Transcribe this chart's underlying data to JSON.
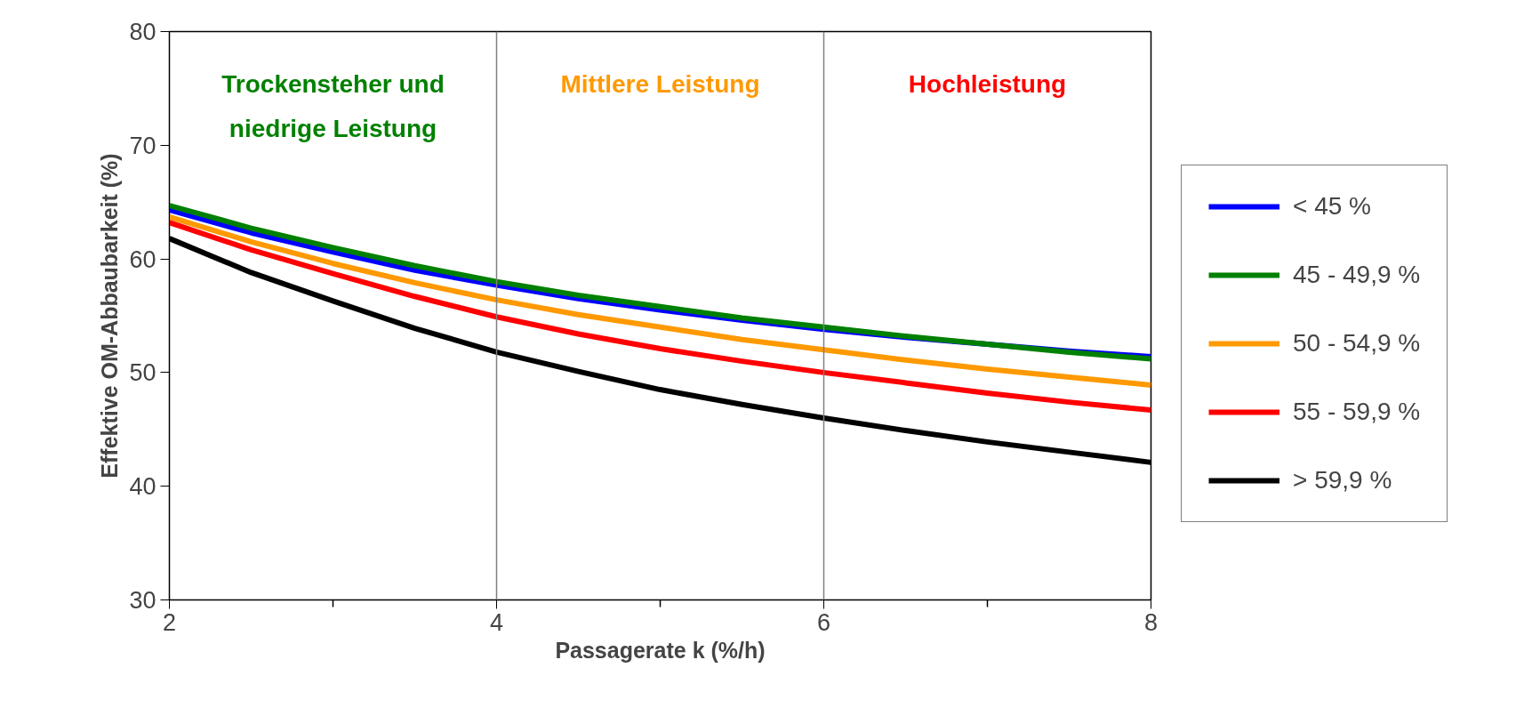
{
  "chart_data": {
    "type": "line",
    "xlabel": "Passagerate k (%/h)",
    "ylabel": "Effektive OM-Abbaubarkeit (%)",
    "x": [
      2,
      2.5,
      3,
      3.5,
      4,
      4.5,
      5,
      5.5,
      6,
      6.5,
      7,
      7.5,
      8
    ],
    "series": [
      {
        "name": "< 45 %",
        "color": "#0000ff",
        "values": [
          64.3,
          62.3,
          60.6,
          59.0,
          57.7,
          56.5,
          55.5,
          54.6,
          53.8,
          53.1,
          52.5,
          51.9,
          51.4
        ]
      },
      {
        "name": "45 - 49,9 %",
        "color": "#008000",
        "values": [
          64.7,
          62.7,
          61.0,
          59.4,
          58.0,
          56.8,
          55.8,
          54.8,
          54.0,
          53.2,
          52.5,
          51.8,
          51.2
        ]
      },
      {
        "name": "50 - 54,9 %",
        "color": "#ff9900",
        "values": [
          63.7,
          61.5,
          59.6,
          57.9,
          56.4,
          55.1,
          54.0,
          52.9,
          52.0,
          51.1,
          50.3,
          49.6,
          48.9
        ]
      },
      {
        "name": "55 - 59,9 %",
        "color": "#ff0000",
        "values": [
          63.2,
          60.8,
          58.7,
          56.7,
          54.9,
          53.4,
          52.1,
          51.0,
          50.0,
          49.1,
          48.2,
          47.4,
          46.7
        ]
      },
      {
        "name": "> 59,9 %",
        "color": "#000000",
        "values": [
          61.8,
          58.8,
          56.3,
          53.9,
          51.8,
          50.1,
          48.5,
          47.2,
          46.0,
          44.9,
          43.9,
          43.0,
          42.1
        ]
      }
    ],
    "xlim": [
      2,
      8
    ],
    "ylim": [
      30,
      80
    ],
    "xticks": [
      2,
      {
        "value": 3,
        "label": null
      },
      4,
      {
        "value": 5,
        "label": null
      },
      6,
      {
        "value": 7,
        "label": null
      },
      8
    ],
    "yticks": [
      30,
      40,
      50,
      60,
      70,
      80
    ],
    "ref_lines": [
      {
        "axis": "x",
        "value": 4,
        "color": "#808080"
      },
      {
        "axis": "x",
        "value": 6,
        "color": "#808080"
      }
    ],
    "annotations": [
      "Trockensteher und\nniedrige Leistung",
      "Mittlere Leistung",
      "Hochleistung"
    ],
    "grid": false,
    "legend": "right",
    "line_style": "solid",
    "marker": "none"
  }
}
